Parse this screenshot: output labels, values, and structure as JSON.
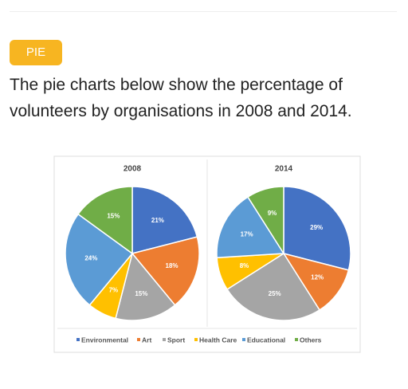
{
  "tag": "PIE",
  "heading": "The pie charts below show the percentage of volunteers by organisations in 2008 and 2014.",
  "chart_data": [
    {
      "type": "pie",
      "title": "2008",
      "categories": [
        "Environmental",
        "Art",
        "Sport",
        "Health Care",
        "Educational",
        "Others"
      ],
      "values": [
        21,
        18,
        15,
        7,
        24,
        15
      ],
      "value_labels": [
        "21%",
        "18%",
        "15%",
        "7%",
        "24%",
        "15%"
      ],
      "colors": [
        "#4472c4",
        "#ed7d31",
        "#a5a5a5",
        "#ffc000",
        "#5b9bd5",
        "#70ad47"
      ],
      "legend": "bottom"
    },
    {
      "type": "pie",
      "title": "2014",
      "categories": [
        "Environmental",
        "Art",
        "Sport",
        "Health Care",
        "Educational",
        "Others"
      ],
      "values": [
        29,
        12,
        25,
        8,
        17,
        9
      ],
      "value_labels": [
        "29%",
        "12%",
        "25%",
        "8%",
        "17%",
        "9%"
      ],
      "colors": [
        "#4472c4",
        "#ed7d31",
        "#a5a5a5",
        "#ffc000",
        "#5b9bd5",
        "#70ad47"
      ],
      "legend": "bottom"
    }
  ]
}
